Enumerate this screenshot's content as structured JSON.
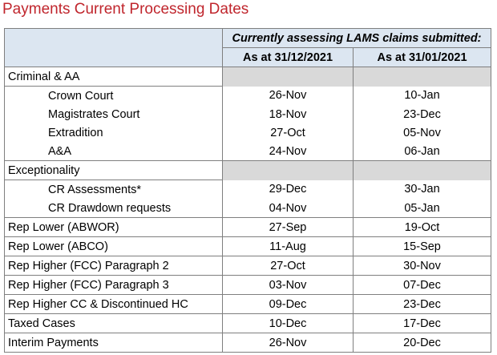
{
  "title": "Payments Current Processing Dates",
  "table": {
    "caption": "Currently assessing LAMS claims submitted:",
    "columns": [
      "As at 31/12/2021",
      "As at 31/01/2021"
    ],
    "rows": [
      {
        "label": "Criminal & AA",
        "type": "group",
        "v1": "",
        "v2": ""
      },
      {
        "label": "Crown Court",
        "type": "sub",
        "v1": "26-Nov",
        "v2": "10-Jan"
      },
      {
        "label": "Magistrates Court",
        "type": "sub",
        "v1": "18-Nov",
        "v2": "23-Dec"
      },
      {
        "label": "Extradition",
        "type": "sub",
        "v1": "27-Oct",
        "v2": "05-Nov"
      },
      {
        "label": "A&A",
        "type": "sub-last",
        "v1": "24-Nov",
        "v2": "06-Jan"
      },
      {
        "label": "Exceptionality",
        "type": "group",
        "v1": "",
        "v2": ""
      },
      {
        "label": "CR Assessments*",
        "type": "sub",
        "v1": "29-Dec",
        "v2": "30-Jan"
      },
      {
        "label": "CR Drawdown requests",
        "type": "sub-last",
        "v1": "04-Nov",
        "v2": "05-Jan"
      },
      {
        "label": "Rep Lower (ABWOR)",
        "type": "row",
        "v1": "27-Sep",
        "v2": "19-Oct"
      },
      {
        "label": "Rep Lower (ABCO)",
        "type": "row",
        "v1": "11-Aug",
        "v2": "15-Sep"
      },
      {
        "label": "Rep Higher (FCC) Paragraph 2",
        "type": "row",
        "v1": "27-Oct",
        "v2": "30-Nov"
      },
      {
        "label": "Rep Higher (FCC) Paragraph 3",
        "type": "row",
        "v1": "03-Nov",
        "v2": "07-Dec"
      },
      {
        "label": "Rep Higher CC & Discontinued HC",
        "type": "row",
        "v1": "09-Dec",
        "v2": "23-Dec"
      },
      {
        "label": "Taxed Cases",
        "type": "row",
        "v1": "10-Dec",
        "v2": "17-Dec"
      },
      {
        "label": "Interim Payments",
        "type": "row",
        "v1": "26-Nov",
        "v2": "20-Dec"
      }
    ]
  }
}
